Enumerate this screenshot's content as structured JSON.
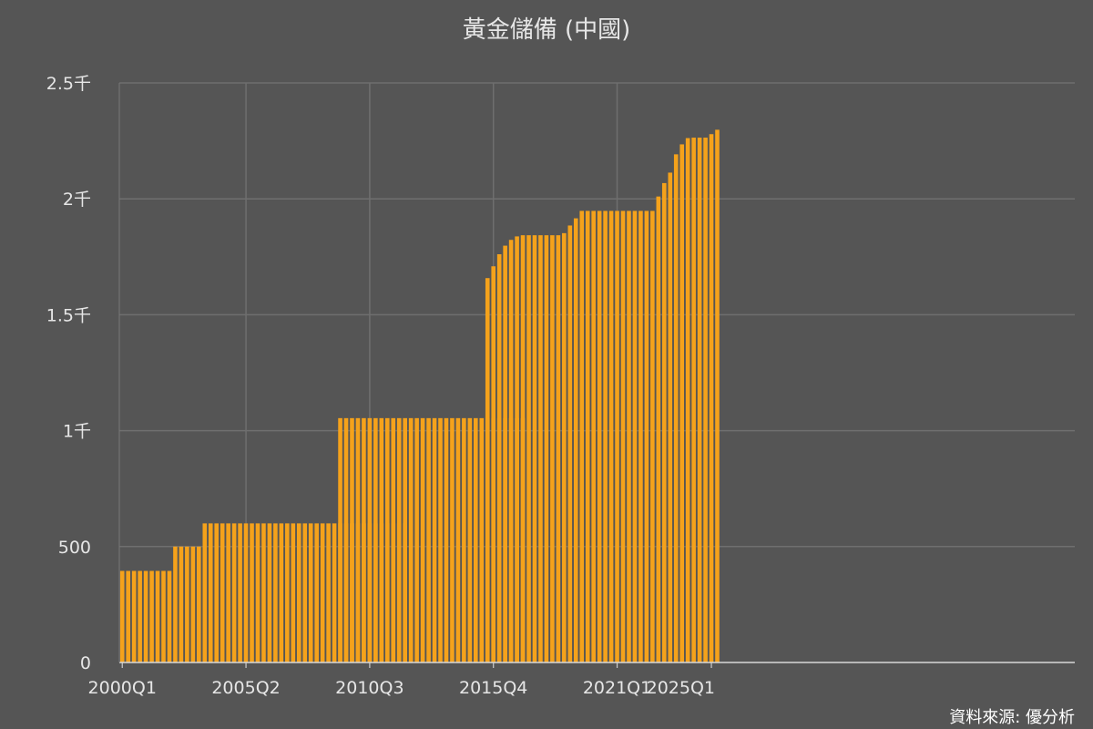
{
  "chart_data": {
    "type": "bar",
    "title": "黃金儲備 (中國)",
    "source": "資料來源: 優分析",
    "xlabel": "",
    "ylabel": "",
    "ylim": [
      0,
      2500
    ],
    "y_ticks": [
      {
        "value": 0,
        "label": "0"
      },
      {
        "value": 500,
        "label": "500"
      },
      {
        "value": 1000,
        "label": "1千"
      },
      {
        "value": 1500,
        "label": "1.5千"
      },
      {
        "value": 2000,
        "label": "2千"
      },
      {
        "value": 2500,
        "label": "2.5千"
      }
    ],
    "x_ticks": [
      "2000Q1",
      "2005Q2",
      "2010Q3",
      "2015Q4",
      "2021Q1",
      "2025Q1"
    ],
    "grid": true,
    "bar_color": "#f5a21b",
    "background_color": "#555555",
    "segments": [
      {
        "start": "2000Q1",
        "count": 9,
        "value": 395
      },
      {
        "start": "2002Q2",
        "count": 5,
        "value": 500
      },
      {
        "start": "2003Q3",
        "count": 35,
        "value": 600
      },
      {
        "start": "2009Q2",
        "count": 32,
        "value": 1054
      }
    ],
    "quarters": [
      {
        "x": "2015Q3",
        "value": 1658
      },
      {
        "x": "2015Q4",
        "value": 1709
      },
      {
        "x": "2016Q1",
        "value": 1761
      },
      {
        "x": "2016Q2",
        "value": 1798
      },
      {
        "x": "2016Q3",
        "value": 1823
      },
      {
        "x": "2016Q4",
        "value": 1838
      },
      {
        "x": "2017Q1",
        "value": 1843
      },
      {
        "x": "2017Q2",
        "value": 1843
      },
      {
        "x": "2017Q3",
        "value": 1843
      },
      {
        "x": "2017Q4",
        "value": 1843
      },
      {
        "x": "2018Q1",
        "value": 1843
      },
      {
        "x": "2018Q2",
        "value": 1843
      },
      {
        "x": "2018Q3",
        "value": 1843
      },
      {
        "x": "2018Q4",
        "value": 1852
      },
      {
        "x": "2019Q1",
        "value": 1885
      },
      {
        "x": "2019Q2",
        "value": 1916
      },
      {
        "x": "2019Q3",
        "value": 1948
      },
      {
        "x": "2019Q4",
        "value": 1948
      },
      {
        "x": "2020Q1",
        "value": 1948
      },
      {
        "x": "2020Q2",
        "value": 1948
      },
      {
        "x": "2020Q3",
        "value": 1948
      },
      {
        "x": "2020Q4",
        "value": 1948
      },
      {
        "x": "2021Q1",
        "value": 1948
      },
      {
        "x": "2021Q2",
        "value": 1948
      },
      {
        "x": "2021Q3",
        "value": 1948
      },
      {
        "x": "2021Q4",
        "value": 1948
      },
      {
        "x": "2022Q1",
        "value": 1948
      },
      {
        "x": "2022Q2",
        "value": 1948
      },
      {
        "x": "2022Q3",
        "value": 1948
      },
      {
        "x": "2022Q4",
        "value": 2010
      },
      {
        "x": "2023Q1",
        "value": 2068
      },
      {
        "x": "2023Q2",
        "value": 2113
      },
      {
        "x": "2023Q3",
        "value": 2192
      },
      {
        "x": "2023Q4",
        "value": 2235
      },
      {
        "x": "2024Q1",
        "value": 2262
      },
      {
        "x": "2024Q2",
        "value": 2264
      },
      {
        "x": "2024Q3",
        "value": 2264
      },
      {
        "x": "2024Q4",
        "value": 2264
      },
      {
        "x": "2025Q1",
        "value": 2279
      },
      {
        "x": "2025Q2",
        "value": 2298
      }
    ]
  }
}
